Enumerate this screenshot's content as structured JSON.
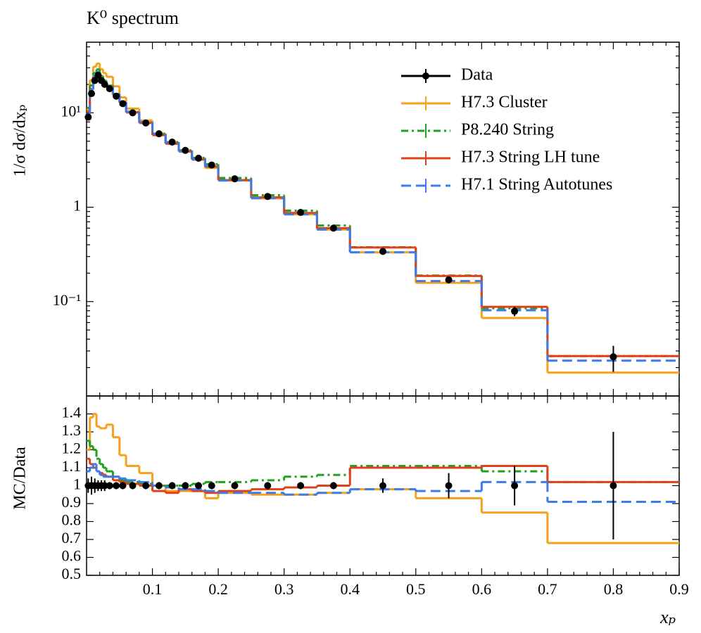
{
  "chart_data": [
    {
      "type": "histogram",
      "title": "K⁰ spectrum",
      "ylabel": "1/σ dσ/dxₚ",
      "yscale": "log",
      "ylim": [
        0.01,
        56
      ],
      "yticks": [
        {
          "value": 0.1,
          "label": "10⁻¹"
        },
        1,
        {
          "value": 10,
          "label": "10¹"
        }
      ],
      "yminorticks": [
        0.02,
        0.03,
        0.04,
        0.05,
        0.06,
        0.07,
        0.08,
        0.09,
        0.2,
        0.3,
        0.4,
        0.5,
        0.6,
        0.7,
        0.8,
        0.9,
        2,
        3,
        4,
        5,
        6,
        7,
        8,
        9,
        20,
        30,
        40,
        50
      ],
      "xlim": [
        0,
        0.9
      ],
      "xticks": [
        0.1,
        0.2,
        0.3,
        0.4,
        0.5,
        0.6,
        0.7,
        0.8,
        0.9
      ],
      "xminorticks": [
        0.02,
        0.04,
        0.06,
        0.08,
        0.12,
        0.14,
        0.16,
        0.18,
        0.22,
        0.24,
        0.26,
        0.28,
        0.32,
        0.34,
        0.36,
        0.38,
        0.42,
        0.44,
        0.46,
        0.48,
        0.52,
        0.54,
        0.56,
        0.58,
        0.62,
        0.64,
        0.66,
        0.68,
        0.72,
        0.74,
        0.76,
        0.78,
        0.82,
        0.84,
        0.86,
        0.88
      ],
      "xticklabels": false,
      "legend": "upper right",
      "bins": [
        0,
        0.005,
        0.01,
        0.015,
        0.02,
        0.025,
        0.03,
        0.04,
        0.05,
        0.06,
        0.08,
        0.1,
        0.12,
        0.14,
        0.16,
        0.18,
        0.2,
        0.25,
        0.3,
        0.35,
        0.4,
        0.5,
        0.6,
        0.7,
        0.9
      ],
      "series": [
        {
          "name": "Data",
          "color": "#000000",
          "style": "points",
          "values": [
            9,
            16,
            22,
            25,
            22,
            20,
            18,
            15,
            12.5,
            10,
            7.8,
            6,
            4.9,
            4,
            3.3,
            2.8,
            2.0,
            1.3,
            0.88,
            0.6,
            0.34,
            0.17,
            0.079,
            0.026
          ],
          "errors": [
            0.36,
            0.8,
            0.88,
            0.75,
            0.66,
            0.6,
            0.36,
            0.3,
            0.25,
            0.2,
            0.16,
            0.12,
            0.1,
            0.08,
            0.07,
            0.06,
            0.04,
            0.03,
            0.02,
            0.012,
            0.014,
            0.012,
            0.009,
            0.008
          ]
        },
        {
          "name": "H7.3 Cluster",
          "color": "#f7a01c",
          "style": "solid",
          "values": [
            10.8,
            22.1,
            30.8,
            33.3,
            29,
            26.4,
            24.1,
            19.1,
            14.6,
            11.1,
            8.3,
            6.0,
            4.75,
            3.88,
            3.2,
            2.6,
            1.92,
            1.24,
            0.84,
            0.58,
            0.333,
            0.158,
            0.067,
            0.0177
          ]
        },
        {
          "name": "P8.240 String",
          "color": "#22a022",
          "style": "dashdot",
          "values": [
            11.3,
            19.5,
            26.4,
            28.8,
            24.6,
            22,
            19.4,
            15.8,
            12.9,
            10.2,
            7.9,
            6.0,
            4.9,
            4.0,
            3.33,
            2.86,
            2.04,
            1.34,
            0.92,
            0.64,
            0.377,
            0.189,
            0.085,
            0.0265
          ]
        },
        {
          "name": "H7.3 String LH tune",
          "color": "#e0401a",
          "style": "solid",
          "values": [
            10.4,
            17.9,
            24.2,
            27,
            23.5,
            21.2,
            18.9,
            15.5,
            12.8,
            10.1,
            7.8,
            5.8,
            4.7,
            3.9,
            3.2,
            2.69,
            1.94,
            1.27,
            0.87,
            0.6,
            0.374,
            0.187,
            0.088,
            0.0265
          ]
        },
        {
          "name": "H7.1 String Autotunes",
          "color": "#3b7bea",
          "style": "dashed",
          "values": [
            9.7,
            17.6,
            24.6,
            27,
            23.3,
            21,
            18.9,
            15.8,
            13,
            10.3,
            8.0,
            6.0,
            4.85,
            3.92,
            3.23,
            2.72,
            1.92,
            1.25,
            0.84,
            0.58,
            0.333,
            0.165,
            0.081,
            0.0237
          ]
        }
      ]
    },
    {
      "type": "histogram",
      "ylabel": "MC/Data",
      "xlabel": "xₚ",
      "ylim": [
        0.5,
        1.5
      ],
      "yticks": [
        0.5,
        0.6,
        0.7,
        0.8,
        0.9,
        1,
        1.1,
        1.2,
        1.3,
        1.4
      ],
      "xlim": [
        0,
        0.9
      ],
      "xticks": [
        0.1,
        0.2,
        0.3,
        0.4,
        0.5,
        0.6,
        0.7,
        0.8,
        0.9
      ],
      "xminorticks": [
        0.02,
        0.04,
        0.06,
        0.08,
        0.12,
        0.14,
        0.16,
        0.18,
        0.22,
        0.24,
        0.26,
        0.28,
        0.32,
        0.34,
        0.36,
        0.38,
        0.42,
        0.44,
        0.46,
        0.48,
        0.52,
        0.54,
        0.56,
        0.58,
        0.62,
        0.64,
        0.66,
        0.68,
        0.72,
        0.74,
        0.76,
        0.78,
        0.82,
        0.84,
        0.86,
        0.88
      ],
      "xticklabels": true,
      "bins": [
        0,
        0.005,
        0.01,
        0.015,
        0.02,
        0.025,
        0.03,
        0.04,
        0.05,
        0.06,
        0.08,
        0.1,
        0.12,
        0.14,
        0.16,
        0.18,
        0.2,
        0.25,
        0.3,
        0.35,
        0.4,
        0.5,
        0.6,
        0.7,
        0.9
      ],
      "series": [
        {
          "color": "#000000",
          "style": "points",
          "values": [
            1,
            1,
            1,
            1,
            1,
            1,
            1,
            1,
            1,
            1,
            1,
            1,
            1,
            1,
            1,
            1,
            1,
            1,
            1,
            1,
            1,
            1,
            1,
            1
          ],
          "errors": [
            0.04,
            0.05,
            0.04,
            0.03,
            0.03,
            0.03,
            0.02,
            0.02,
            0.02,
            0.02,
            0.02,
            0.02,
            0.02,
            0.02,
            0.02,
            0.02,
            0.02,
            0.02,
            0.02,
            0.02,
            0.04,
            0.07,
            0.11,
            0.3
          ]
        },
        {
          "color": "#f7a01c",
          "style": "solid",
          "values": [
            1.2,
            1.38,
            1.4,
            1.33,
            1.32,
            1.32,
            1.34,
            1.27,
            1.17,
            1.11,
            1.07,
            1.0,
            0.97,
            0.97,
            0.97,
            0.93,
            0.96,
            0.95,
            0.95,
            0.96,
            0.98,
            0.93,
            0.85,
            0.68
          ]
        },
        {
          "color": "#22a022",
          "style": "dashdot",
          "values": [
            1.25,
            1.22,
            1.2,
            1.15,
            1.12,
            1.1,
            1.08,
            1.05,
            1.03,
            1.02,
            1.01,
            1.0,
            1.0,
            1.0,
            1.01,
            1.02,
            1.02,
            1.03,
            1.05,
            1.06,
            1.11,
            1.11,
            1.08,
            1.02
          ]
        },
        {
          "color": "#e0401a",
          "style": "solid",
          "values": [
            1.15,
            1.12,
            1.1,
            1.08,
            1.07,
            1.06,
            1.05,
            1.03,
            1.02,
            1.01,
            1.0,
            0.97,
            0.96,
            0.98,
            0.97,
            0.96,
            0.97,
            0.98,
            0.99,
            1.0,
            1.1,
            1.1,
            1.11,
            1.02
          ]
        },
        {
          "color": "#3b7bea",
          "style": "dashed",
          "values": [
            1.08,
            1.1,
            1.12,
            1.08,
            1.06,
            1.05,
            1.05,
            1.05,
            1.04,
            1.03,
            1.02,
            1.0,
            0.99,
            0.98,
            0.98,
            0.97,
            0.96,
            0.96,
            0.95,
            0.96,
            0.98,
            0.97,
            1.02,
            0.91
          ]
        }
      ]
    }
  ]
}
